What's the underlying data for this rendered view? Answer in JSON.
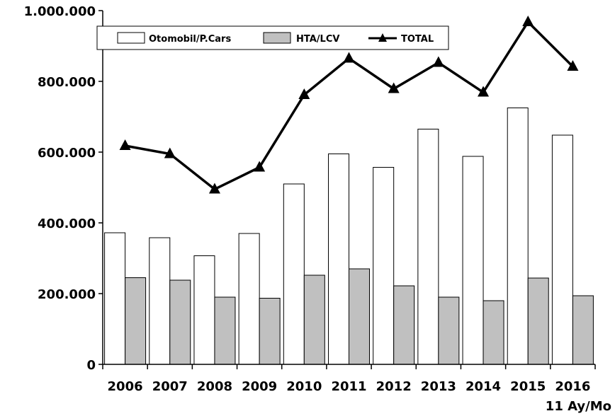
{
  "chart_data": {
    "type": "bar",
    "categories": [
      "2006",
      "2007",
      "2008",
      "2009",
      "2010",
      "2011",
      "2012",
      "2013",
      "2014",
      "2015",
      "2016"
    ],
    "xlabel_note": "11 Ay/Mo",
    "series": [
      {
        "name": "Otomobil/P.Cars",
        "type": "bar",
        "color": "#ffffff",
        "values": [
          372000,
          358000,
          307000,
          370000,
          510000,
          595000,
          557000,
          665000,
          588000,
          725000,
          648000
        ]
      },
      {
        "name": "HTA/LCV",
        "type": "bar",
        "color": "#c0c0c0",
        "values": [
          245000,
          238000,
          190000,
          187000,
          252000,
          270000,
          222000,
          190000,
          180000,
          244000,
          194000
        ]
      },
      {
        "name": "TOTAL",
        "type": "line",
        "color": "#000000",
        "values": [
          618000,
          595000,
          495000,
          557000,
          762000,
          865000,
          779000,
          853000,
          769000,
          968000,
          842000
        ]
      }
    ],
    "ylim": [
      0,
      1000000
    ],
    "yticks": [
      "0",
      "200.000",
      "400.000",
      "600.000",
      "800.000",
      "1.000.000"
    ],
    "grid": false,
    "legend_position": "top-left"
  }
}
